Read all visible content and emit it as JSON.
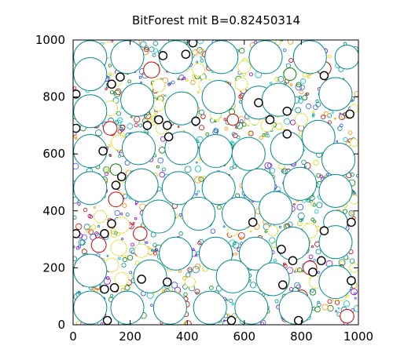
{
  "chart_data": {
    "type": "scatter",
    "title": "BitForest mit B=0.82450314",
    "xlabel": "",
    "ylabel": "",
    "xlim": [
      0,
      1000
    ],
    "ylim": [
      0,
      1000
    ],
    "xticks": [
      "0",
      "200",
      "400",
      "600",
      "800",
      "1000"
    ],
    "yticks": [
      "0",
      "200",
      "400",
      "600",
      "800",
      "1000"
    ],
    "grid": false,
    "colors": {
      "outline": "#008b8b",
      "black": "#000000",
      "red": "#cc0000",
      "yellow": "#d8d800",
      "green": "#008000",
      "purple": "#9400d3",
      "cyan": "#00bfbf",
      "orange": "#ff8c00",
      "blue": "#3050ff"
    },
    "large_circles": [
      {
        "x": 60,
        "y": 940,
        "r": 58
      },
      {
        "x": 190,
        "y": 940,
        "r": 58
      },
      {
        "x": 360,
        "y": 940,
        "r": 58
      },
      {
        "x": 520,
        "y": 940,
        "r": 58
      },
      {
        "x": 675,
        "y": 940,
        "r": 58
      },
      {
        "x": 830,
        "y": 940,
        "r": 58
      },
      {
        "x": 960,
        "y": 940,
        "r": 42
      },
      {
        "x": 60,
        "y": 880,
        "r": 58
      },
      {
        "x": 225,
        "y": 790,
        "r": 58
      },
      {
        "x": 380,
        "y": 760,
        "r": 58
      },
      {
        "x": 510,
        "y": 800,
        "r": 58
      },
      {
        "x": 650,
        "y": 780,
        "r": 58
      },
      {
        "x": 720,
        "y": 790,
        "r": 58
      },
      {
        "x": 920,
        "y": 810,
        "r": 58
      },
      {
        "x": 60,
        "y": 750,
        "r": 58
      },
      {
        "x": 60,
        "y": 610,
        "r": 58
      },
      {
        "x": 230,
        "y": 620,
        "r": 58
      },
      {
        "x": 380,
        "y": 620,
        "r": 58
      },
      {
        "x": 500,
        "y": 610,
        "r": 58
      },
      {
        "x": 615,
        "y": 600,
        "r": 58
      },
      {
        "x": 750,
        "y": 620,
        "r": 58
      },
      {
        "x": 860,
        "y": 660,
        "r": 58
      },
      {
        "x": 930,
        "y": 580,
        "r": 58
      },
      {
        "x": 60,
        "y": 480,
        "r": 58
      },
      {
        "x": 240,
        "y": 490,
        "r": 58
      },
      {
        "x": 370,
        "y": 480,
        "r": 58
      },
      {
        "x": 510,
        "y": 480,
        "r": 58
      },
      {
        "x": 650,
        "y": 490,
        "r": 58
      },
      {
        "x": 795,
        "y": 495,
        "r": 58
      },
      {
        "x": 920,
        "y": 470,
        "r": 58
      },
      {
        "x": 300,
        "y": 380,
        "r": 58
      },
      {
        "x": 440,
        "y": 390,
        "r": 58
      },
      {
        "x": 580,
        "y": 390,
        "r": 58
      },
      {
        "x": 710,
        "y": 410,
        "r": 58
      },
      {
        "x": 920,
        "y": 360,
        "r": 42
      },
      {
        "x": 360,
        "y": 250,
        "r": 58
      },
      {
        "x": 500,
        "y": 250,
        "r": 58
      },
      {
        "x": 640,
        "y": 250,
        "r": 58
      },
      {
        "x": 770,
        "y": 285,
        "r": 58
      },
      {
        "x": 920,
        "y": 290,
        "r": 58
      },
      {
        "x": 60,
        "y": 190,
        "r": 58
      },
      {
        "x": 270,
        "y": 170,
        "r": 58
      },
      {
        "x": 560,
        "y": 170,
        "r": 58
      },
      {
        "x": 700,
        "y": 160,
        "r": 58
      },
      {
        "x": 60,
        "y": 60,
        "r": 58
      },
      {
        "x": 190,
        "y": 60,
        "r": 58
      },
      {
        "x": 340,
        "y": 60,
        "r": 58
      },
      {
        "x": 480,
        "y": 60,
        "r": 58
      },
      {
        "x": 625,
        "y": 60,
        "r": 58
      },
      {
        "x": 780,
        "y": 60,
        "r": 58
      },
      {
        "x": 920,
        "y": 150,
        "r": 58
      }
    ],
    "medium_circles": [
      {
        "x": 125,
        "y": 965,
        "r": 28,
        "c": "yellow"
      },
      {
        "x": 275,
        "y": 895,
        "r": 28,
        "c": "red"
      },
      {
        "x": 440,
        "y": 895,
        "r": 22,
        "c": "yellow"
      },
      {
        "x": 600,
        "y": 905,
        "r": 22,
        "c": "yellow"
      },
      {
        "x": 760,
        "y": 880,
        "r": 22,
        "c": "green"
      },
      {
        "x": 880,
        "y": 900,
        "r": 24,
        "c": "red"
      },
      {
        "x": 150,
        "y": 860,
        "r": 22,
        "c": "yellow"
      },
      {
        "x": 300,
        "y": 840,
        "r": 22,
        "c": "yellow"
      },
      {
        "x": 465,
        "y": 840,
        "r": 24,
        "c": "yellow"
      },
      {
        "x": 590,
        "y": 845,
        "r": 22,
        "c": "yellow"
      },
      {
        "x": 130,
        "y": 760,
        "r": 26,
        "c": "yellow"
      },
      {
        "x": 300,
        "y": 770,
        "r": 20,
        "c": "yellow"
      },
      {
        "x": 500,
        "y": 740,
        "r": 20,
        "c": "yellow"
      },
      {
        "x": 560,
        "y": 720,
        "r": 20,
        "c": "red"
      },
      {
        "x": 635,
        "y": 720,
        "r": 18,
        "c": "yellow"
      },
      {
        "x": 800,
        "y": 720,
        "r": 22,
        "c": "yellow"
      },
      {
        "x": 130,
        "y": 690,
        "r": 24,
        "c": "red"
      },
      {
        "x": 160,
        "y": 640,
        "r": 26,
        "c": "yellow"
      },
      {
        "x": 310,
        "y": 690,
        "r": 20,
        "c": "yellow"
      },
      {
        "x": 680,
        "y": 700,
        "r": 22,
        "c": "yellow"
      },
      {
        "x": 150,
        "y": 440,
        "r": 26,
        "c": "red"
      },
      {
        "x": 150,
        "y": 545,
        "r": 20,
        "c": "green"
      },
      {
        "x": 180,
        "y": 480,
        "r": 20,
        "c": "yellow"
      },
      {
        "x": 95,
        "y": 380,
        "r": 22,
        "c": "yellow"
      },
      {
        "x": 170,
        "y": 350,
        "r": 28,
        "c": "yellow"
      },
      {
        "x": 235,
        "y": 320,
        "r": 24,
        "c": "red"
      },
      {
        "x": 90,
        "y": 280,
        "r": 26,
        "c": "red"
      },
      {
        "x": 160,
        "y": 270,
        "r": 28,
        "c": "yellow"
      },
      {
        "x": 240,
        "y": 260,
        "r": 24,
        "c": "yellow"
      },
      {
        "x": 135,
        "y": 210,
        "r": 24,
        "c": "yellow"
      },
      {
        "x": 170,
        "y": 160,
        "r": 24,
        "c": "yellow"
      },
      {
        "x": 250,
        "y": 190,
        "r": 26,
        "c": "red"
      },
      {
        "x": 280,
        "y": 130,
        "r": 20,
        "c": "yellow"
      },
      {
        "x": 410,
        "y": 150,
        "r": 18,
        "c": "yellow"
      },
      {
        "x": 830,
        "y": 330,
        "r": 26,
        "c": "yellow"
      },
      {
        "x": 830,
        "y": 200,
        "r": 24,
        "c": "red"
      },
      {
        "x": 850,
        "y": 150,
        "r": 22,
        "c": "yellow"
      },
      {
        "x": 800,
        "y": 100,
        "r": 22,
        "c": "red"
      },
      {
        "x": 960,
        "y": 30,
        "r": 24,
        "c": "red"
      },
      {
        "x": 770,
        "y": 300,
        "r": 18,
        "c": "yellow"
      },
      {
        "x": 700,
        "y": 330,
        "r": 18,
        "c": "yellow"
      },
      {
        "x": 560,
        "y": 330,
        "r": 18,
        "c": "yellow"
      },
      {
        "x": 400,
        "y": 800,
        "r": 16,
        "c": "yellow"
      },
      {
        "x": 270,
        "y": 620,
        "r": 14,
        "c": "yellow"
      },
      {
        "x": 985,
        "y": 760,
        "r": 14,
        "c": "yellow"
      },
      {
        "x": 985,
        "y": 640,
        "r": 14,
        "c": "yellow"
      },
      {
        "x": 985,
        "y": 440,
        "r": 16,
        "c": "yellow"
      },
      {
        "x": 985,
        "y": 200,
        "r": 16,
        "c": "yellow"
      },
      {
        "x": 360,
        "y": 100,
        "r": 18,
        "c": "yellow"
      },
      {
        "x": 940,
        "y": 100,
        "r": 16,
        "c": "yellow"
      }
    ],
    "black_rings": [
      {
        "x": 105,
        "y": 610,
        "r": 14
      },
      {
        "x": 150,
        "y": 490,
        "r": 14
      },
      {
        "x": 135,
        "y": 355,
        "r": 14
      },
      {
        "x": 145,
        "y": 130,
        "r": 14
      },
      {
        "x": 260,
        "y": 700,
        "r": 14
      },
      {
        "x": 300,
        "y": 720,
        "r": 14
      },
      {
        "x": 335,
        "y": 660,
        "r": 14
      },
      {
        "x": 430,
        "y": 715,
        "r": 14
      },
      {
        "x": 650,
        "y": 780,
        "r": 14
      },
      {
        "x": 690,
        "y": 720,
        "r": 14
      },
      {
        "x": 750,
        "y": 750,
        "r": 14
      },
      {
        "x": 750,
        "y": 670,
        "r": 14
      },
      {
        "x": 880,
        "y": 875,
        "r": 14
      },
      {
        "x": 970,
        "y": 740,
        "r": 14
      },
      {
        "x": 10,
        "y": 810,
        "r": 14
      },
      {
        "x": 10,
        "y": 690,
        "r": 14
      },
      {
        "x": 165,
        "y": 870,
        "r": 14
      },
      {
        "x": 315,
        "y": 945,
        "r": 14
      },
      {
        "x": 395,
        "y": 950,
        "r": 14
      },
      {
        "x": 420,
        "y": 990,
        "r": 14
      },
      {
        "x": 630,
        "y": 360,
        "r": 14
      },
      {
        "x": 730,
        "y": 265,
        "r": 14
      },
      {
        "x": 770,
        "y": 225,
        "r": 14
      },
      {
        "x": 840,
        "y": 185,
        "r": 14
      },
      {
        "x": 870,
        "y": 225,
        "r": 14
      },
      {
        "x": 975,
        "y": 360,
        "r": 14
      },
      {
        "x": 975,
        "y": 155,
        "r": 14
      },
      {
        "x": 110,
        "y": 125,
        "r": 14
      },
      {
        "x": 110,
        "y": 320,
        "r": 14
      },
      {
        "x": 10,
        "y": 320,
        "r": 14
      },
      {
        "x": 240,
        "y": 160,
        "r": 14
      },
      {
        "x": 330,
        "y": 150,
        "r": 14
      },
      {
        "x": 735,
        "y": 140,
        "r": 14
      },
      {
        "x": 790,
        "y": 15,
        "r": 14
      },
      {
        "x": 555,
        "y": 15,
        "r": 14
      },
      {
        "x": 120,
        "y": 15,
        "r": 14
      },
      {
        "x": 170,
        "y": 520,
        "r": 14
      },
      {
        "x": 135,
        "y": 845,
        "r": 14
      },
      {
        "x": 880,
        "y": 330,
        "r": 14
      },
      {
        "x": 330,
        "y": 700,
        "r": 14
      }
    ]
  }
}
